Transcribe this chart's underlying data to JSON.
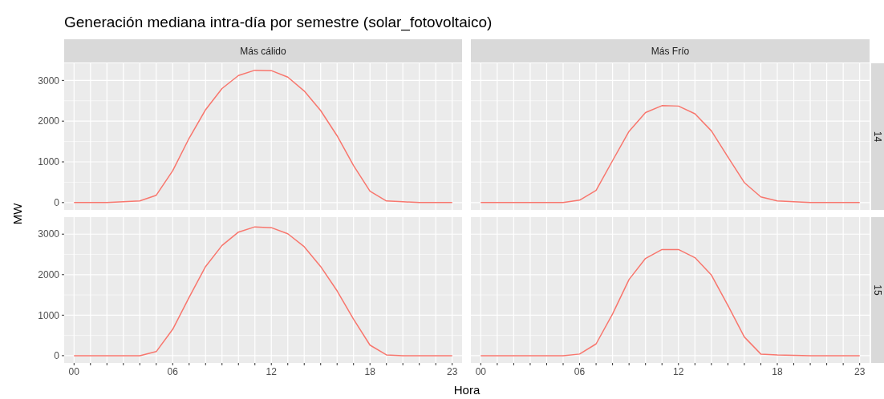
{
  "chart_data": [
    {
      "type": "line",
      "title": "Generación mediana intra-día por semestre (solar_fotovoltaico)",
      "subtitle": "Más cálido",
      "ylabel": "MW",
      "x": [
        0,
        1,
        2,
        3,
        4,
        5,
        6,
        7,
        8,
        9,
        10,
        11,
        12,
        13,
        14,
        15,
        16,
        17,
        18,
        19,
        20,
        21,
        22,
        23
      ],
      "series": [
        {
          "color": "#f8766d",
          "values": [
            0,
            0,
            0,
            20,
            40,
            180,
            780,
            1580,
            2280,
            2800,
            3120,
            3250,
            3240,
            3080,
            2740,
            2260,
            1640,
            910,
            280,
            40,
            20,
            0,
            0,
            0
          ]
        }
      ],
      "xlim": [
        -0.6,
        23.6
      ],
      "ylim": [
        -180,
        3420
      ],
      "yticks": [
        0,
        1000,
        2000,
        3000
      ],
      "xticks": [
        {
          "value": 0,
          "label": null
        },
        {
          "value": 1,
          "label": null
        },
        {
          "value": 2,
          "label": null
        },
        {
          "value": 3,
          "label": null
        },
        {
          "value": 4,
          "label": null
        },
        {
          "value": 5,
          "label": null
        },
        {
          "value": 6,
          "label": null
        },
        {
          "value": 7,
          "label": null
        },
        {
          "value": 8,
          "label": null
        },
        {
          "value": 9,
          "label": null
        },
        {
          "value": 10,
          "label": null
        },
        {
          "value": 11,
          "label": null
        },
        {
          "value": 12,
          "label": null
        },
        {
          "value": 13,
          "label": null
        },
        {
          "value": 14,
          "label": null
        },
        {
          "value": 15,
          "label": null
        },
        {
          "value": 16,
          "label": null
        },
        {
          "value": 17,
          "label": null
        },
        {
          "value": 18,
          "label": null
        },
        {
          "value": 19,
          "label": null
        },
        {
          "value": 20,
          "label": null
        },
        {
          "value": 21,
          "label": null
        },
        {
          "value": 22,
          "label": null
        },
        {
          "value": 23,
          "label": null
        }
      ],
      "grid": true,
      "tick_labels": "y"
    },
    {
      "type": "line",
      "subtitle": "Más Frío",
      "annotations": [
        "14"
      ],
      "x": [
        0,
        1,
        2,
        3,
        4,
        5,
        6,
        7,
        8,
        9,
        10,
        11,
        12,
        13,
        14,
        15,
        16,
        17,
        18,
        19,
        20,
        21,
        22,
        23
      ],
      "series": [
        {
          "color": "#f8766d",
          "values": [
            0,
            0,
            0,
            0,
            0,
            0,
            60,
            300,
            1030,
            1750,
            2210,
            2380,
            2370,
            2180,
            1760,
            1120,
            490,
            140,
            40,
            20,
            0,
            0,
            0,
            0
          ]
        }
      ],
      "xlim": [
        -0.6,
        23.6
      ],
      "ylim": [
        -180,
        3420
      ],
      "yticks": [
        0,
        1000,
        2000,
        3000
      ],
      "xticks": [
        {
          "value": 0,
          "label": null
        },
        {
          "value": 1,
          "label": null
        },
        {
          "value": 2,
          "label": null
        },
        {
          "value": 3,
          "label": null
        },
        {
          "value": 4,
          "label": null
        },
        {
          "value": 5,
          "label": null
        },
        {
          "value": 6,
          "label": null
        },
        {
          "value": 7,
          "label": null
        },
        {
          "value": 8,
          "label": null
        },
        {
          "value": 9,
          "label": null
        },
        {
          "value": 10,
          "label": null
        },
        {
          "value": 11,
          "label": null
        },
        {
          "value": 12,
          "label": null
        },
        {
          "value": 13,
          "label": null
        },
        {
          "value": 14,
          "label": null
        },
        {
          "value": 15,
          "label": null
        },
        {
          "value": 16,
          "label": null
        },
        {
          "value": 17,
          "label": null
        },
        {
          "value": 18,
          "label": null
        },
        {
          "value": 19,
          "label": null
        },
        {
          "value": 20,
          "label": null
        },
        {
          "value": 21,
          "label": null
        },
        {
          "value": 22,
          "label": null
        },
        {
          "value": 23,
          "label": null
        }
      ],
      "grid": true,
      "tick_labels": false
    },
    {
      "type": "line",
      "xlabel": "Hora",
      "x": [
        0,
        1,
        2,
        3,
        4,
        5,
        6,
        7,
        8,
        9,
        10,
        11,
        12,
        13,
        14,
        15,
        16,
        17,
        18,
        19,
        20,
        21,
        22,
        23
      ],
      "series": [
        {
          "color": "#f8766d",
          "values": [
            0,
            0,
            0,
            0,
            0,
            100,
            650,
            1440,
            2200,
            2720,
            3050,
            3180,
            3160,
            3010,
            2690,
            2200,
            1600,
            900,
            260,
            20,
            0,
            0,
            0,
            0
          ]
        }
      ],
      "xlim": [
        -0.6,
        23.6
      ],
      "ylim": [
        -180,
        3420
      ],
      "yticks": [
        0,
        1000,
        2000,
        3000
      ],
      "xticks": [
        {
          "value": 0,
          "label": "00"
        },
        {
          "value": 1,
          "label": null
        },
        {
          "value": 2,
          "label": null
        },
        {
          "value": 3,
          "label": null
        },
        {
          "value": 4,
          "label": null
        },
        {
          "value": 5,
          "label": null
        },
        {
          "value": 6,
          "label": "06"
        },
        {
          "value": 7,
          "label": null
        },
        {
          "value": 8,
          "label": null
        },
        {
          "value": 9,
          "label": null
        },
        {
          "value": 10,
          "label": null
        },
        {
          "value": 11,
          "label": null
        },
        {
          "value": 12,
          "label": "12"
        },
        {
          "value": 13,
          "label": null
        },
        {
          "value": 14,
          "label": null
        },
        {
          "value": 15,
          "label": null
        },
        {
          "value": 16,
          "label": null
        },
        {
          "value": 17,
          "label": null
        },
        {
          "value": 18,
          "label": "18"
        },
        {
          "value": 19,
          "label": null
        },
        {
          "value": 20,
          "label": null
        },
        {
          "value": 21,
          "label": null
        },
        {
          "value": 22,
          "label": null
        },
        {
          "value": 23,
          "label": "23"
        }
      ],
      "grid": true
    },
    {
      "type": "line",
      "annotations": [
        "15"
      ],
      "x": [
        0,
        1,
        2,
        3,
        4,
        5,
        6,
        7,
        8,
        9,
        10,
        11,
        12,
        13,
        14,
        15,
        16,
        17,
        18,
        19,
        20,
        21,
        22,
        23
      ],
      "series": [
        {
          "color": "#f8766d",
          "values": [
            0,
            0,
            0,
            0,
            0,
            0,
            40,
            290,
            1030,
            1880,
            2400,
            2620,
            2620,
            2420,
            1990,
            1240,
            460,
            40,
            20,
            10,
            0,
            0,
            0,
            0
          ]
        }
      ],
      "xlim": [
        -0.6,
        23.6
      ],
      "ylim": [
        -180,
        3420
      ],
      "yticks": [
        0,
        1000,
        2000,
        3000
      ],
      "xticks": [
        {
          "value": 0,
          "label": "00"
        },
        {
          "value": 1,
          "label": null
        },
        {
          "value": 2,
          "label": null
        },
        {
          "value": 3,
          "label": null
        },
        {
          "value": 4,
          "label": null
        },
        {
          "value": 5,
          "label": null
        },
        {
          "value": 6,
          "label": "06"
        },
        {
          "value": 7,
          "label": null
        },
        {
          "value": 8,
          "label": null
        },
        {
          "value": 9,
          "label": null
        },
        {
          "value": 10,
          "label": null
        },
        {
          "value": 11,
          "label": null
        },
        {
          "value": 12,
          "label": "12"
        },
        {
          "value": 13,
          "label": null
        },
        {
          "value": 14,
          "label": null
        },
        {
          "value": 15,
          "label": null
        },
        {
          "value": 16,
          "label": null
        },
        {
          "value": 17,
          "label": null
        },
        {
          "value": 18,
          "label": "18"
        },
        {
          "value": 19,
          "label": null
        },
        {
          "value": 20,
          "label": null
        },
        {
          "value": 21,
          "label": null
        },
        {
          "value": 22,
          "label": null
        },
        {
          "value": 23,
          "label": "23"
        }
      ],
      "grid": true,
      "tick_labels": "x"
    }
  ]
}
